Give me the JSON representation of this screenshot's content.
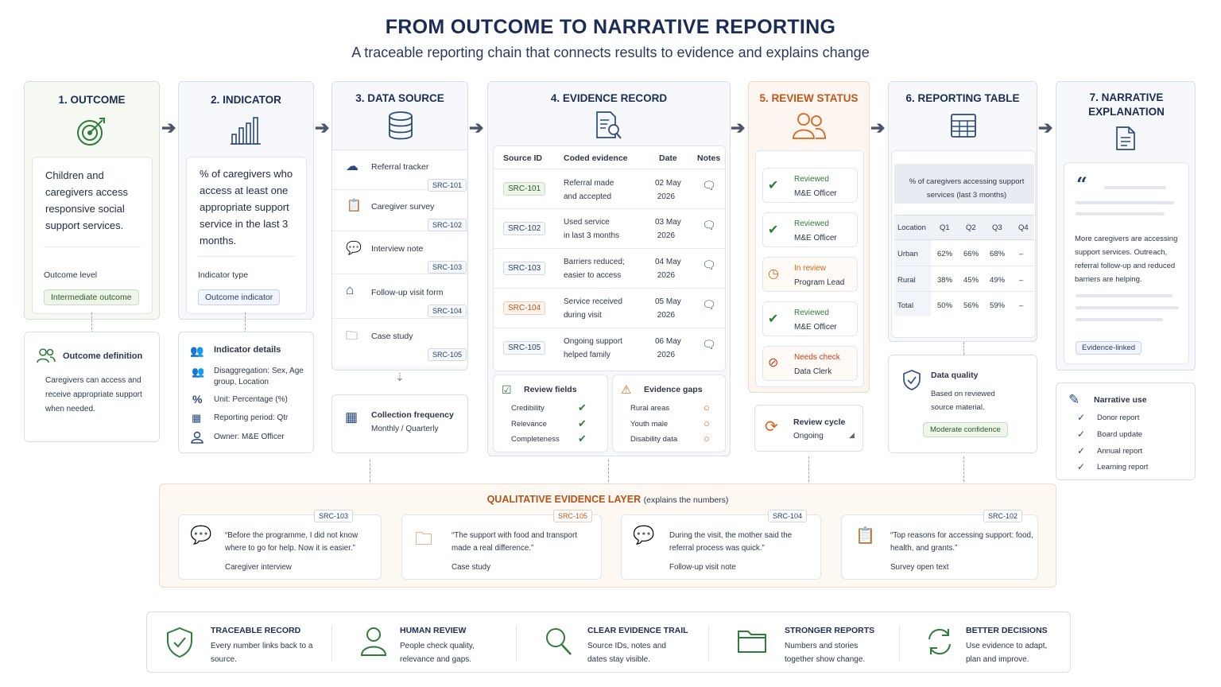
{
  "title": "FROM OUTCOME TO NARRATIVE REPORTING",
  "subtitle": "A traceable reporting chain that connects results to evidence and explains change",
  "outcome": {
    "heading": "1. OUTCOME",
    "text": "Children and caregivers access responsive social support services.",
    "level_label": "Outcome level",
    "level_value": "Intermediate outcome",
    "def_title": "Outcome definition",
    "def_text": "Caregivers can access and receive appropriate support when needed."
  },
  "indicator": {
    "heading": "2. INDICATOR",
    "text": "% of caregivers who access at least one appropriate support service in the last 3 months.",
    "type_label": "Indicator type",
    "type_value": "Outcome indicator",
    "details_title": "Indicator details",
    "details": [
      "Disaggregation: Sex, Age group, Location",
      "Unit: Percentage (%)",
      "Reporting period: Qtr",
      "Owner: M&E Officer"
    ]
  },
  "data_source": {
    "heading": "3. DATA SOURCE",
    "items": [
      {
        "label": "Referral tracker",
        "id": "SRC-101"
      },
      {
        "label": "Caregiver survey",
        "id": "SRC-102"
      },
      {
        "label": "Interview note",
        "id": "SRC-103"
      },
      {
        "label": "Follow-up visit form",
        "id": "SRC-104"
      },
      {
        "label": "Case study",
        "id": "SRC-105"
      }
    ],
    "freq_title": "Collection frequency",
    "freq_value": "Monthly / Quarterly"
  },
  "evidence": {
    "heading": "4. EVIDENCE RECORD",
    "columns": [
      "Source ID",
      "Coded evidence",
      "Date",
      "Notes"
    ],
    "rows": [
      {
        "id": "SRC-101",
        "ev1": "Referral made",
        "ev2": "and accepted",
        "d1": "02 May",
        "d2": "2026"
      },
      {
        "id": "SRC-102",
        "ev1": "Used service",
        "ev2": "in last 3 months",
        "d1": "03 May",
        "d2": "2026"
      },
      {
        "id": "SRC-103",
        "ev1": "Barriers reduced;",
        "ev2": "easier to access",
        "d1": "04 May",
        "d2": "2026"
      },
      {
        "id": "SRC-104",
        "ev1": "Service received",
        "ev2": "during visit",
        "d1": "05 May",
        "d2": "2026"
      },
      {
        "id": "SRC-105",
        "ev1": "Ongoing support",
        "ev2": "helped family",
        "d1": "06 May",
        "d2": "2026"
      }
    ],
    "review_title": "Review fields",
    "review_fields": [
      "Credibility",
      "Relevance",
      "Completeness"
    ],
    "gaps_title": "Evidence gaps",
    "gaps": [
      "Rural areas",
      "Youth male",
      "Disability data"
    ]
  },
  "review": {
    "heading": "5. REVIEW STATUS",
    "items": [
      {
        "status": "Reviewed",
        "who": "M&E Officer"
      },
      {
        "status": "Reviewed",
        "who": "M&E Officer"
      },
      {
        "status": "In review",
        "who": "Program Lead"
      },
      {
        "status": "Reviewed",
        "who": "M&E Officer"
      },
      {
        "status": "Needs check",
        "who": "Data Clerk"
      }
    ],
    "cycle_title": "Review cycle",
    "cycle_value": "Ongoing"
  },
  "reporting": {
    "heading": "6. REPORTING TABLE",
    "caption": "% of caregivers accessing support services (last 3 months)",
    "columns": [
      "Location",
      "Q1",
      "Q2",
      "Q3",
      "Q4"
    ],
    "rows": [
      [
        "Urban",
        "62%",
        "66%",
        "68%",
        "–"
      ],
      [
        "Rural",
        "38%",
        "45%",
        "49%",
        "–"
      ],
      [
        "Total",
        "50%",
        "56%",
        "59%",
        "–"
      ]
    ],
    "quality_title": "Data quality",
    "quality_text": "Based on reviewed source material.",
    "quality_badge": "Moderate confidence"
  },
  "narrative": {
    "heading": "7. NARRATIVE EXPLANATION",
    "text": "More caregivers are accessing support services. Outreach, referral follow-up and reduced barriers are helping.",
    "badge": "Evidence-linked",
    "use_title": "Narrative use",
    "uses": [
      "Donor report",
      "Board update",
      "Annual report",
      "Learning report"
    ]
  },
  "qualitative": {
    "title": "QUALITATIVE EVIDENCE LAYER",
    "title_note": "(explains the numbers)",
    "quotes": [
      {
        "id": "SRC-103",
        "text": "“Before the programme, I did not know where to go for help. Now it is easier.”",
        "source": "Caregiver interview"
      },
      {
        "id": "SRC-105",
        "text": "“The support with food and transport made a real difference.”",
        "source": "Case study"
      },
      {
        "id": "SRC-104",
        "text": "During the visit, the mother said the referral process was quick.”",
        "source": "Follow-up visit note"
      },
      {
        "id": "SRC-102",
        "text": "“Top reasons for accessing support: food, health, and grants.”",
        "source": "Survey open text"
      }
    ]
  },
  "benefits": [
    {
      "title": "TRACEABLE RECORD",
      "text": "Every number links back to a source."
    },
    {
      "title": "HUMAN REVIEW",
      "text": "People check quality, relevance and gaps."
    },
    {
      "title": "CLEAR EVIDENCE TRAIL",
      "text": "Source IDs, notes and dates stay visible."
    },
    {
      "title": "STRONGER REPORTS",
      "text": "Numbers and stories together show change."
    },
    {
      "title": "BETTER DECISIONS",
      "text": "Use evidence to adapt, plan and improve."
    }
  ],
  "colors": {
    "green": "#2f7d3a",
    "orange": "#d9651b",
    "navy": "#1c2d55"
  }
}
